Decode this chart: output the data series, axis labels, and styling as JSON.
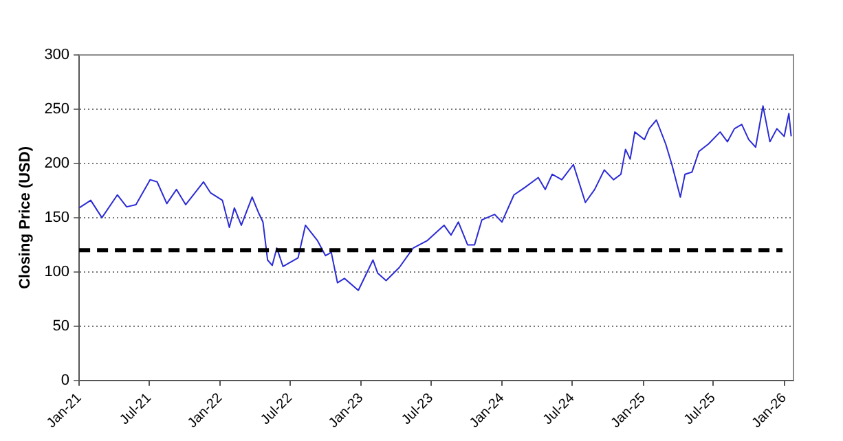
{
  "chart_data": {
    "type": "line",
    "ylabel": "Closing Price (USD)",
    "x": [
      "2021-01-01",
      "2021-01-31",
      "2021-03-01",
      "2021-04-10",
      "2021-05-04",
      "2021-05-28",
      "2021-07-04",
      "2021-07-22",
      "2021-08-16",
      "2021-09-10",
      "2021-10-04",
      "2021-11-19",
      "2021-12-07",
      "2022-01-07",
      "2022-01-25",
      "2022-02-07",
      "2022-02-25",
      "2022-03-25",
      "2022-04-10",
      "2022-04-22",
      "2022-05-04",
      "2022-05-16",
      "2022-05-28",
      "2022-06-13",
      "2022-07-22",
      "2022-08-10",
      "2022-09-10",
      "2022-10-01",
      "2022-10-16",
      "2022-11-01",
      "2022-11-19",
      "2022-12-25",
      "2023-02-01",
      "2023-02-13",
      "2023-03-07",
      "2023-04-10",
      "2023-05-16",
      "2023-06-22",
      "2023-08-04",
      "2023-08-22",
      "2023-09-10",
      "2023-10-04",
      "2023-10-22",
      "2023-11-10",
      "2023-12-13",
      "2024-01-01",
      "2024-02-01",
      "2024-03-01",
      "2024-04-04",
      "2024-04-22",
      "2024-05-10",
      "2024-06-04",
      "2024-07-04",
      "2024-08-04",
      "2024-08-28",
      "2024-09-22",
      "2024-10-16",
      "2024-11-04",
      "2024-11-16",
      "2024-11-28",
      "2024-12-10",
      "2025-01-04",
      "2025-01-16",
      "2025-02-04",
      "2025-02-28",
      "2025-03-16",
      "2025-04-07",
      "2025-04-19",
      "2025-05-07",
      "2025-05-25",
      "2025-06-19",
      "2025-07-19",
      "2025-08-07",
      "2025-08-25",
      "2025-09-13",
      "2025-10-01",
      "2025-10-19",
      "2025-11-07",
      "2025-11-25",
      "2025-12-13",
      "2026-01-01",
      "2026-01-13",
      "2026-01-19"
    ],
    "series": [
      {
        "color": "#2b2bd6",
        "values": [
          159,
          166,
          150,
          171,
          160,
          162,
          185,
          183,
          163,
          176,
          162,
          183,
          173,
          166,
          141,
          159,
          143,
          169,
          155,
          146,
          111,
          106,
          122,
          105,
          113,
          143,
          129,
          115,
          118,
          90,
          94,
          83,
          111,
          99,
          92,
          104,
          122,
          129,
          143,
          134,
          146,
          125,
          125,
          148,
          153,
          146,
          171,
          178,
          187,
          176,
          190,
          185,
          199,
          164,
          176,
          194,
          185,
          190,
          213,
          204,
          229,
          222,
          232,
          240,
          218,
          199,
          169,
          190,
          192,
          211,
          218,
          229,
          220,
          232,
          236,
          222,
          215,
          253,
          220,
          232,
          225,
          246,
          225
        ]
      }
    ],
    "xlim": [
      "2021-01-01",
      "2026-01-25"
    ],
    "xticks": [
      {
        "value": "2021-01-01",
        "label": "Jan-21"
      },
      {
        "value": "2021-07-01",
        "label": "Jul-21"
      },
      {
        "value": "2022-01-01",
        "label": "Jan-22"
      },
      {
        "value": "2022-07-01",
        "label": "Jul-22"
      },
      {
        "value": "2023-01-01",
        "label": "Jan-23"
      },
      {
        "value": "2023-07-01",
        "label": "Jul-23"
      },
      {
        "value": "2024-01-01",
        "label": "Jan-24"
      },
      {
        "value": "2024-07-01",
        "label": "Jul-24"
      },
      {
        "value": "2025-01-01",
        "label": "Jan-25"
      },
      {
        "value": "2025-07-01",
        "label": "Jul-25"
      },
      {
        "value": "2026-01-01",
        "label": "Jan-26"
      }
    ],
    "ylim": [
      0,
      300
    ],
    "yticks": [
      0,
      50,
      100,
      150,
      200,
      250,
      300
    ],
    "ref_lines": [
      {
        "axis": "y",
        "value": 120,
        "color": "#000000",
        "line_style": "dashed"
      }
    ],
    "grid": "y",
    "legend": false,
    "line_style": "solid",
    "marker": "none"
  }
}
